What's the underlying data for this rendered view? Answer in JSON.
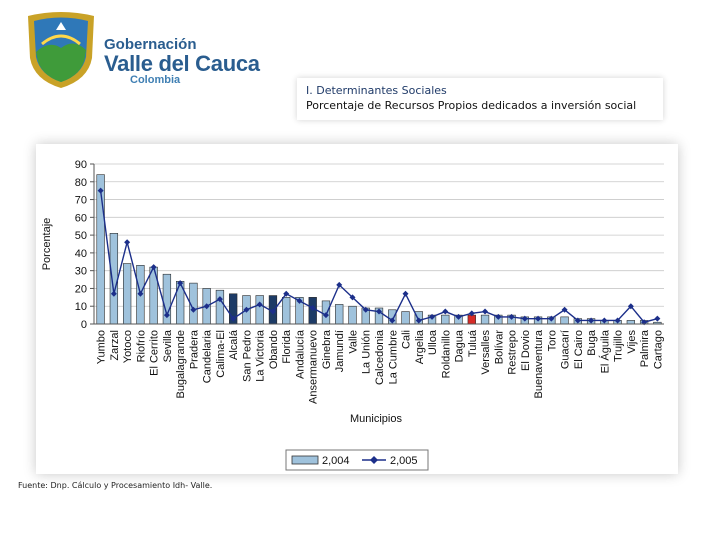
{
  "header": {
    "logo": {
      "line1": "Gobernación",
      "line2": "Valle del Cauca",
      "line3": "Colombia"
    },
    "section_title": "I. Determinantes Sociales",
    "subtitle": "Porcentaje de Recursos Propios dedicados a inversión social"
  },
  "source_note": "Fuente: Dnp. Cálculo y Procesamiento Idh- Valle.",
  "colors": {
    "bar_fill": "#9fc2dc",
    "bar_dark": "#1d3b66",
    "bar_highlight": "#d62b27",
    "line": "#1c2f8a"
  },
  "chart_data": {
    "type": "bar",
    "ylabel": "Porcentaje",
    "xlabel": "Municipios",
    "ylim": [
      0,
      90
    ],
    "yticks": [
      0,
      10,
      20,
      30,
      40,
      50,
      60,
      70,
      80,
      90
    ],
    "legend_position": "bottom",
    "highlight_category": "Tuluá",
    "categories": [
      "Yumbo",
      "Zarzal",
      "Yotoco",
      "Riofrío",
      "El Cerrito",
      "Sevilla",
      "Bugalagrande",
      "Pradera",
      "Candelaria",
      "Calima-El",
      "Alcalá",
      "San Pedro",
      "La Victoria",
      "Obando",
      "Florida",
      "Andalucía",
      "Ansermanuevo",
      "Ginebra",
      "Jamundí",
      "Valle",
      "La Unión",
      "Calcedonia",
      "La Cumbre",
      "Cali",
      "Argelia",
      "Ulloa",
      "Roldanillo",
      "Dagua",
      "Tuluá",
      "Versalles",
      "Bolívar",
      "Restrepo",
      "El Dovio",
      "Buenaventura",
      "Toro",
      "Guacarí",
      "El Cairo",
      "Buga",
      "El Águila",
      "Trujillo",
      "Vijes",
      "Palmira",
      "Cartago"
    ],
    "series": [
      {
        "name": "2,004",
        "kind": "bar",
        "values": [
          84,
          51,
          34,
          33,
          32,
          28,
          24,
          23,
          20,
          19,
          17,
          16,
          16,
          16,
          15,
          15,
          15,
          13,
          11,
          10,
          9,
          9,
          8,
          7,
          7,
          5,
          5,
          5,
          5,
          5,
          5,
          5,
          4,
          4,
          4,
          4,
          3,
          3,
          2,
          2,
          2,
          2,
          1
        ]
      },
      {
        "name": "2,005",
        "kind": "line",
        "values": [
          75,
          17,
          46,
          17,
          32,
          5,
          23,
          8,
          10,
          14,
          3,
          8,
          11,
          7,
          17,
          13,
          9,
          5,
          22,
          15,
          8,
          7,
          2,
          17,
          2,
          4,
          7,
          4,
          6,
          7,
          4,
          4,
          3,
          3,
          3,
          8,
          2,
          2,
          2,
          2,
          10,
          1,
          3
        ]
      }
    ]
  }
}
